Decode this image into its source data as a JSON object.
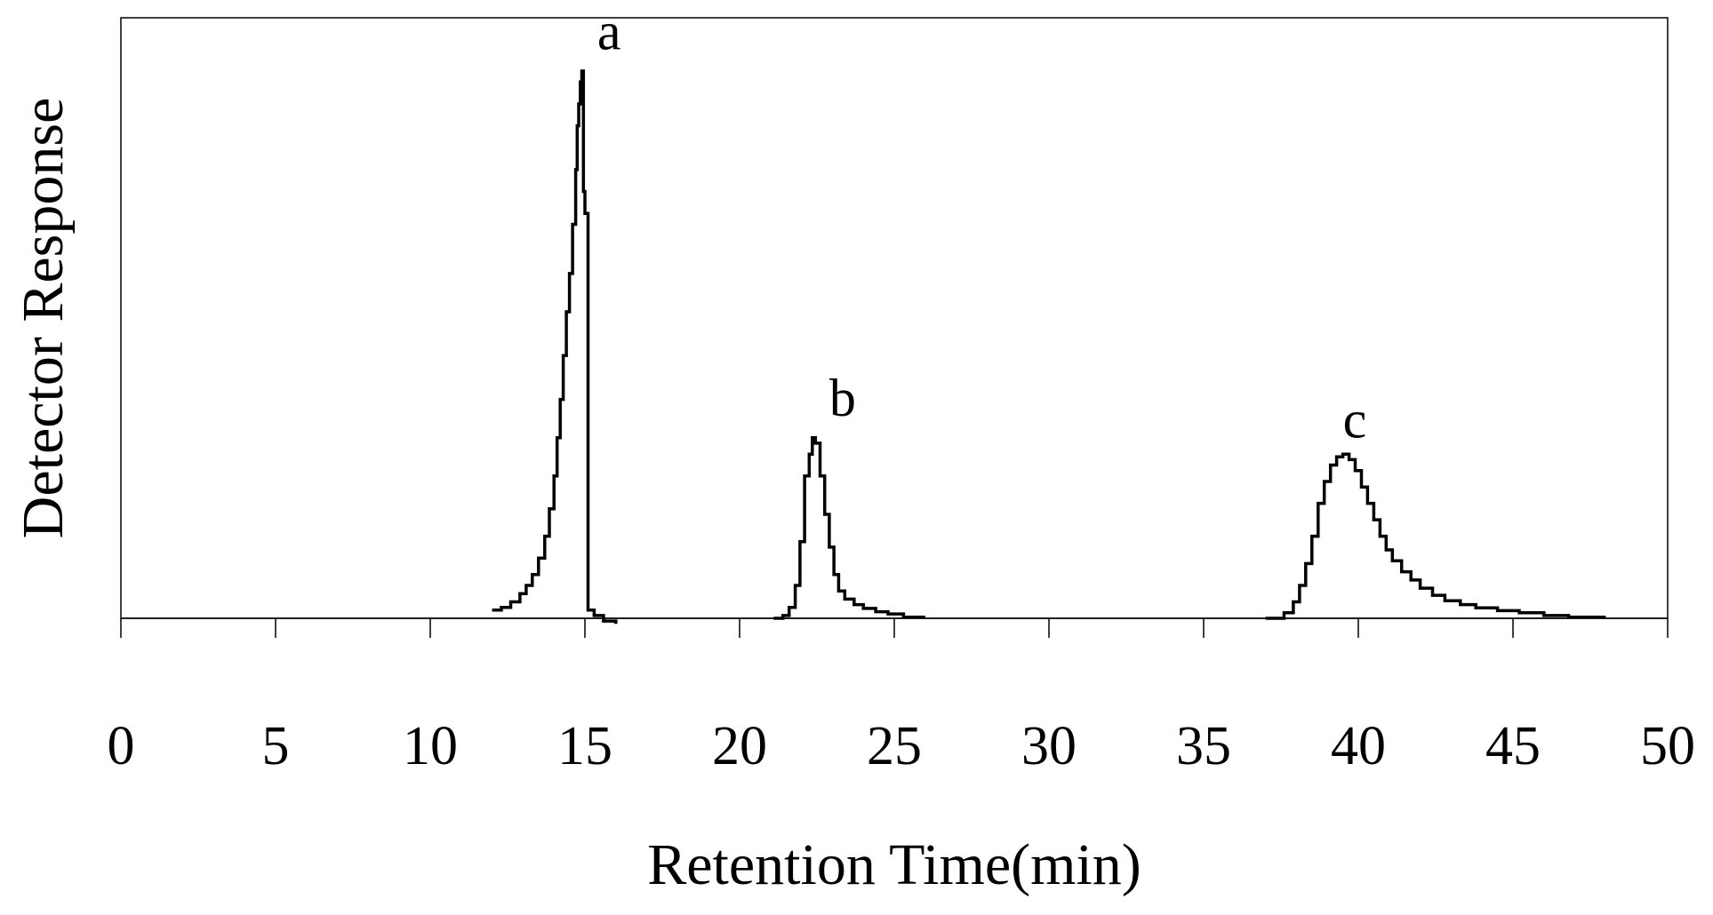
{
  "chart_data": {
    "type": "line",
    "title": "",
    "xlabel": "Retention Time(min)",
    "ylabel": "Detector Response",
    "xlim": [
      0,
      50
    ],
    "ylim": [
      -0.02,
      1.12
    ],
    "x_ticks": [
      0,
      5,
      10,
      15,
      20,
      25,
      30,
      35,
      40,
      45,
      50
    ],
    "x_tick_labels": [
      "0",
      "5",
      "10",
      "15",
      "20",
      "25",
      "30",
      "35",
      "40",
      "45",
      "50"
    ],
    "y_tick_labels_shown": false,
    "grid": false,
    "legend": "none",
    "line_style": "step",
    "annotations": [
      {
        "text": "a",
        "x": 15.4,
        "y": 1.04
      },
      {
        "text": "b",
        "x": 22.9,
        "y": 0.37
      },
      {
        "text": "c",
        "x": 39.5,
        "y": 0.33
      }
    ],
    "series": [
      {
        "x": [
          12.0,
          12.3,
          12.6,
          12.9,
          13.1,
          13.3,
          13.5,
          13.7,
          13.85,
          14.0,
          14.1,
          14.2,
          14.3,
          14.4,
          14.5,
          14.6,
          14.7,
          14.75,
          14.8,
          14.85,
          14.9,
          14.95,
          15.0,
          15.1,
          15.3,
          15.6,
          16.0
        ],
        "y": [
          0.015,
          0.02,
          0.03,
          0.045,
          0.06,
          0.08,
          0.11,
          0.15,
          0.2,
          0.26,
          0.33,
          0.4,
          0.48,
          0.56,
          0.63,
          0.72,
          0.82,
          0.9,
          0.94,
          0.98,
          1.0,
          0.78,
          0.74,
          0.015,
          0.005,
          -0.005,
          -0.01
        ]
      },
      {
        "x": [
          21.1,
          21.4,
          21.6,
          21.8,
          21.95,
          22.1,
          22.25,
          22.35,
          22.45,
          22.6,
          22.75,
          22.9,
          23.05,
          23.2,
          23.4,
          23.7,
          24.0,
          24.4,
          24.8,
          25.3,
          26.0
        ],
        "y": [
          0.0,
          0.005,
          0.02,
          0.06,
          0.14,
          0.26,
          0.3,
          0.33,
          0.32,
          0.26,
          0.19,
          0.13,
          0.08,
          0.05,
          0.035,
          0.025,
          0.018,
          0.012,
          0.008,
          0.002,
          0.002
        ]
      },
      {
        "x": [
          37.0,
          37.6,
          37.9,
          38.1,
          38.3,
          38.5,
          38.7,
          38.9,
          39.1,
          39.3,
          39.5,
          39.7,
          39.9,
          40.1,
          40.3,
          40.5,
          40.7,
          40.9,
          41.1,
          41.4,
          41.7,
          42.0,
          42.4,
          42.8,
          43.3,
          43.8,
          44.5,
          45.2,
          46.0,
          46.8,
          48.0
        ],
        "y": [
          0.0,
          0.01,
          0.03,
          0.06,
          0.1,
          0.15,
          0.21,
          0.25,
          0.28,
          0.295,
          0.3,
          0.29,
          0.27,
          0.24,
          0.21,
          0.18,
          0.15,
          0.125,
          0.105,
          0.085,
          0.07,
          0.055,
          0.042,
          0.032,
          0.025,
          0.019,
          0.014,
          0.01,
          0.005,
          0.002,
          0.002
        ]
      }
    ],
    "colors": {
      "line": "#000000",
      "axis": "#000000",
      "background": "#ffffff"
    }
  }
}
